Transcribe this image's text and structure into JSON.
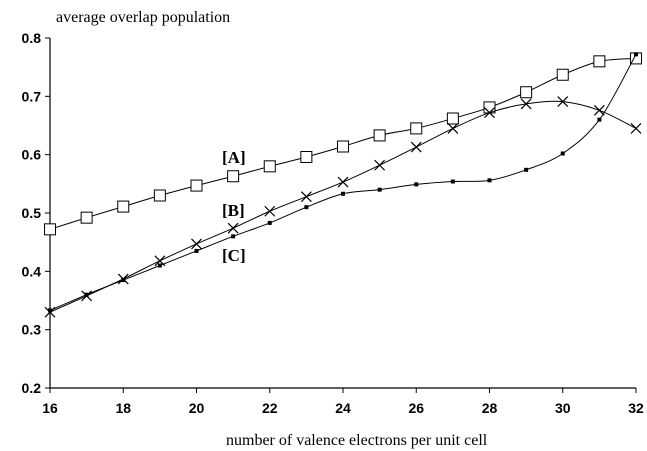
{
  "chart_data": {
    "type": "line",
    "ylabel": "average overlap population",
    "xlabel": "number of valence electrons per unit cell",
    "xlim": [
      16,
      32
    ],
    "ylim": [
      0.2,
      0.8
    ],
    "x_ticks": [
      "16",
      "18",
      "20",
      "22",
      "24",
      "26",
      "28",
      "30",
      "32"
    ],
    "y_ticks": [
      "0.2",
      "0.3",
      "0.4",
      "0.5",
      "0.6",
      "0.7",
      "0.8"
    ],
    "grid": false,
    "x": [
      16,
      17,
      18,
      19,
      20,
      21,
      22,
      23,
      24,
      25,
      26,
      27,
      28,
      29,
      30,
      31,
      32
    ],
    "series": [
      {
        "name": "[A]",
        "marker": "square",
        "values": [
          0.472,
          0.492,
          0.511,
          0.53,
          0.547,
          0.563,
          0.58,
          0.596,
          0.614,
          0.633,
          0.645,
          0.662,
          0.681,
          0.707,
          0.737,
          0.76,
          0.765
        ]
      },
      {
        "name": "[B]",
        "marker": "x",
        "values": [
          0.33,
          0.358,
          0.387,
          0.418,
          0.447,
          0.474,
          0.503,
          0.528,
          0.553,
          0.582,
          0.613,
          0.645,
          0.672,
          0.687,
          0.691,
          0.676,
          0.645
        ]
      },
      {
        "name": "[C]",
        "marker": "dot",
        "values": [
          0.333,
          0.36,
          0.385,
          0.41,
          0.435,
          0.46,
          0.483,
          0.51,
          0.533,
          0.54,
          0.549,
          0.554,
          0.556,
          0.574,
          0.602,
          0.66,
          0.772
        ]
      }
    ]
  }
}
